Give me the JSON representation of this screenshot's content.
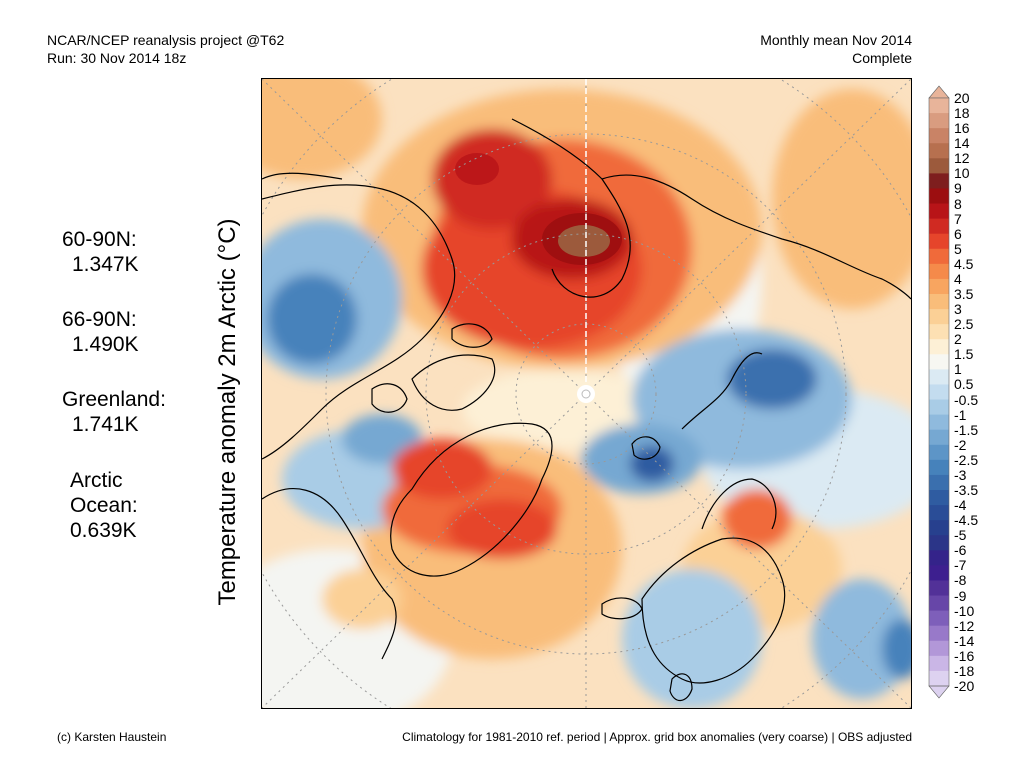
{
  "header": {
    "left_line1": "NCAR/NCEP reanalysis project @T62",
    "left_line2": "Run: 30 Nov 2014 18z",
    "right_line1": "Monthly mean Nov 2014",
    "right_line2": "Complete"
  },
  "ylabel": "Temperature anomaly 2m Arctic (°C)",
  "stats": [
    {
      "name": "60-90N:",
      "value": "1.347K"
    },
    {
      "name": "66-90N:",
      "value": "1.490K"
    },
    {
      "name": "Greenland:",
      "value": "1.741K"
    },
    {
      "name": "Arctic",
      "name2": "Ocean:",
      "value": "0.639K"
    }
  ],
  "colorbar": {
    "labels": [
      "20",
      "18",
      "16",
      "14",
      "12",
      "10",
      "9",
      "8",
      "7",
      "6",
      "5",
      "4.5",
      "4",
      "3.5",
      "3",
      "2.5",
      "2",
      "1.5",
      "1",
      "0.5",
      "-0.5",
      "-1",
      "-1.5",
      "-2",
      "-2.5",
      "-3",
      "-3.5",
      "-4",
      "-4.5",
      "-5",
      "-6",
      "-7",
      "-8",
      "-9",
      "-10",
      "-12",
      "-14",
      "-16",
      "-18",
      "-20"
    ],
    "colors": [
      "#e8b49a",
      "#d99c80",
      "#c98366",
      "#b7704f",
      "#9c5a3c",
      "#7e1e1e",
      "#9c0e10",
      "#b81418",
      "#d02a22",
      "#e6452b",
      "#f06a3a",
      "#f58a4a",
      "#f8a560",
      "#f9bd7a",
      "#fbd096",
      "#fde0b3",
      "#fdf0d6",
      "#f7f7f2",
      "#dbeaf3",
      "#c3dcef",
      "#a9cce6",
      "#8fbadd",
      "#76a8d2",
      "#5d95c7",
      "#4682bb",
      "#3a6fae",
      "#2f5ca1",
      "#2a4d97",
      "#27408e",
      "#2b3588",
      "#34238a",
      "#3d1f8f",
      "#523198",
      "#6746a8",
      "#7e5fba",
      "#9879c9",
      "#b297d8",
      "#cab6e6",
      "#ddd2f0"
    ]
  },
  "footer": {
    "left": "(c) Karsten Haustein",
    "right": "Climatology for 1981-2010 ref. period | Approx. grid box anomalies (very coarse) | OBS adjusted"
  },
  "map": {
    "pole_marker_icon": "pole-marker-icon",
    "background_color": "#fbe1c0"
  }
}
